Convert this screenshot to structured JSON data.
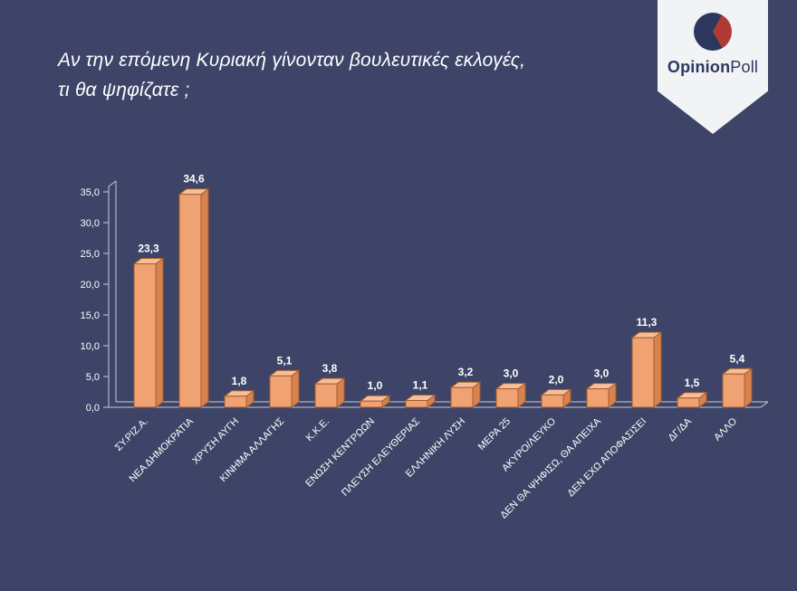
{
  "title": {
    "line1": "Αν την επόμενη Κυριακή γίνονταν βουλευτικές εκλογές,",
    "line2": "τι θα ψηφίζατε ;"
  },
  "logo": {
    "brand_bold": "Opinion",
    "brand_light": "Poll"
  },
  "colors": {
    "background": "#3d4467",
    "bar_front": "#f1a273",
    "bar_top": "#f6bf9a",
    "bar_side": "#d8824f",
    "bar_border": "#a35c2e",
    "axis": "#c9cdd9",
    "text": "#ffffff",
    "logo_navy": "#2c3760",
    "logo_red": "#b13a34",
    "badge": "#f2f3f5"
  },
  "chart_data": {
    "type": "bar",
    "style": "3d",
    "title": "Αν την επόμενη Κυριακή γίνονταν βουλευτικές εκλογές, τι θα ψηφίζατε ;",
    "categories": [
      "ΣΥ.ΡΙΖ.Α.",
      "ΝΕΑ ΔΗΜΟΚΡΑΤΙΑ",
      "ΧΡΥΣΗ ΑΥΓΗ",
      "ΚΙΝΗΜΑ ΑΛΛΑΓΗΣ",
      "Κ.Κ.Ε.",
      "ΕΝΩΣΗ ΚΕΝΤΡΩΩΝ",
      "ΠΛΕΥΣΗ ΕΛΕΥΘΕΡΙΑΣ",
      "ΕΛΛΗΝΙΚΗ ΛΥΣΗ",
      "ΜΕΡΑ 25",
      "ΑΚΥΡΟ/ΛΕΥΚΟ",
      "ΔΕΝ ΘΑ ΨΗΦΙΣΩ, ΘΑ ΑΠΕΙΧΑ",
      "ΔΕΝ ΕΧΩ ΑΠΟΦΑΣΙΣΕΙ",
      "ΔΓ/ΔΑ",
      "ΑΛΛΟ"
    ],
    "values": [
      23.3,
      34.6,
      1.8,
      5.1,
      3.8,
      1.0,
      1.1,
      3.2,
      3.0,
      2.0,
      3.0,
      11.3,
      1.5,
      5.4
    ],
    "value_labels": [
      "23,3",
      "34,6",
      "1,8",
      "5,1",
      "3,8",
      "1,0",
      "1,1",
      "3,2",
      "3,0",
      "2,0",
      "3,0",
      "11,3",
      "1,5",
      "5,4"
    ],
    "y_tick_labels": [
      "0,0",
      "5,0",
      "10,0",
      "15,0",
      "20,0",
      "25,0",
      "30,0",
      "35,0"
    ],
    "ylim": [
      0,
      35
    ],
    "ytick_step": 5,
    "xlabel": "",
    "ylabel": "",
    "grid": false,
    "legend": false
  }
}
